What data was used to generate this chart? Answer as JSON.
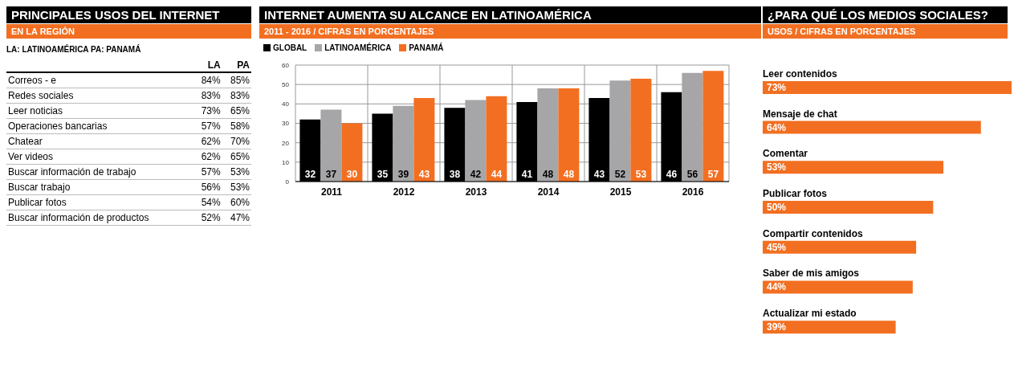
{
  "chart_data": [
    {
      "type": "other",
      "title": "PRINCIPALES USOS DEL INTERNET",
      "subtitle": "EN LA REGIÓN",
      "annotations": [
        "LA: LATINOAMÉRICA  PA: PANAMÁ"
      ],
      "categories": [
        "Correos - e",
        "Redes sociales",
        "Leer noticias",
        "Operaciones bancarias",
        "Chatear",
        "Ver videos",
        "Buscar información de trabajo",
        "Buscar trabajo",
        "Publicar fotos",
        "Buscar información de productos"
      ],
      "series": [
        {
          "name": "LA",
          "values": [
            84,
            83,
            73,
            57,
            62,
            62,
            57,
            56,
            54,
            52
          ],
          "value_labels": [
            "84%",
            "83%",
            "73%",
            "57%",
            "62%",
            "62%",
            "57%",
            "56%",
            "54%",
            "52%"
          ]
        },
        {
          "name": "PA",
          "values": [
            85,
            83,
            65,
            58,
            70,
            65,
            53,
            53,
            60,
            47
          ],
          "value_labels": [
            "85%",
            "83%",
            "65%",
            "58%",
            "70%",
            "65%",
            "53%",
            "53%",
            "60%",
            "47%"
          ]
        }
      ]
    },
    {
      "type": "bar",
      "title": "INTERNET AUMENTA SU ALCANCE EN LATINOAMÉRICA",
      "subtitle": "2011 - 2016 / CIFRAS EN PORCENTAJES",
      "categories": [
        "2011",
        "2012",
        "2013",
        "2014",
        "2015",
        "2016"
      ],
      "series": [
        {
          "name": "GLOBAL",
          "color": "#000000",
          "values": [
            32,
            35,
            38,
            41,
            43,
            46
          ]
        },
        {
          "name": "LATINOAMÉRICA",
          "color": "#a6a6a8",
          "values": [
            37,
            39,
            42,
            48,
            52,
            56
          ]
        },
        {
          "name": "PANAMÁ",
          "color": "#f26f21",
          "values": [
            30,
            43,
            44,
            48,
            53,
            57
          ]
        }
      ],
      "ylim": [
        0,
        60
      ],
      "yticks": [
        0,
        10,
        20,
        30,
        40,
        50,
        60
      ],
      "grid": true,
      "legend": "top left",
      "data_labels": true
    },
    {
      "type": "bar",
      "orientation": "horizontal",
      "title": "¿PARA QUÉ LOS MEDIOS SOCIALES?",
      "subtitle": "USOS / CIFRAS EN PORCENTAJES",
      "categories": [
        "Leer contenidos",
        "Mensaje de chat",
        "Comentar",
        "Publicar fotos",
        "Compartir contenidos",
        "Saber de mis amigos",
        "Actualizar mi estado"
      ],
      "values": [
        73,
        64,
        53,
        50,
        45,
        44,
        39
      ],
      "value_labels": [
        "73%",
        "64%",
        "53%",
        "50%",
        "45%",
        "44%",
        "39%"
      ],
      "color": "#f26f21"
    }
  ]
}
